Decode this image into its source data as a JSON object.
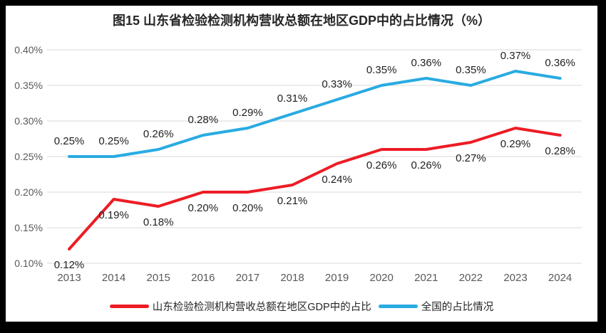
{
  "frame": {
    "border_color": "#000000",
    "background": "#ffffff"
  },
  "chart_data": {
    "type": "line",
    "title": "图15  山东省检验检测机构营收总额在地区GDP中的占比情况（%）",
    "title_color": "#262626",
    "xlabel": "",
    "ylabel": "",
    "categories": [
      "2013",
      "2014",
      "2015",
      "2016",
      "2017",
      "2018",
      "2019",
      "2020",
      "2021",
      "2022",
      "2023",
      "2024"
    ],
    "ylim": [
      0.1,
      0.4
    ],
    "yticks": [
      {
        "value": 0.1,
        "label": "0.10%"
      },
      {
        "value": 0.15,
        "label": "0.15%"
      },
      {
        "value": 0.2,
        "label": "0.20%"
      },
      {
        "value": 0.25,
        "label": "0.25%"
      },
      {
        "value": 0.3,
        "label": "0.30%"
      },
      {
        "value": 0.35,
        "label": "0.35%"
      },
      {
        "value": 0.4,
        "label": "0.40%"
      }
    ],
    "grid": "horizontal",
    "gridline_color": "#d9d9d9",
    "axis_label_color": "#595959",
    "data_label_color": "#1f1f1f",
    "legend_position": "bottom",
    "series": [
      {
        "id": "shandong",
        "name": "山东检验检测机构营收总额在地区GDP中的占比",
        "color": "#ed1c24",
        "label_position": "below",
        "values": [
          0.12,
          0.19,
          0.18,
          0.2,
          0.2,
          0.21,
          0.24,
          0.26,
          0.26,
          0.27,
          0.29,
          0.28
        ],
        "labels": [
          "0.12%",
          "0.19%",
          "0.18%",
          "0.20%",
          "0.20%",
          "0.21%",
          "0.24%",
          "0.26%",
          "0.26%",
          "0.27%",
          "0.29%",
          "0.28%"
        ]
      },
      {
        "id": "national",
        "name": "全国的占比情况",
        "color": "#29abe2",
        "label_position": "above",
        "values": [
          0.25,
          0.25,
          0.26,
          0.28,
          0.29,
          0.31,
          0.33,
          0.35,
          0.36,
          0.35,
          0.37,
          0.36
        ],
        "labels": [
          "0.25%",
          "0.25%",
          "0.26%",
          "0.28%",
          "0.29%",
          "0.31%",
          "0.33%",
          "0.35%",
          "0.36%",
          "0.35%",
          "0.37%",
          "0.36%"
        ]
      }
    ]
  }
}
